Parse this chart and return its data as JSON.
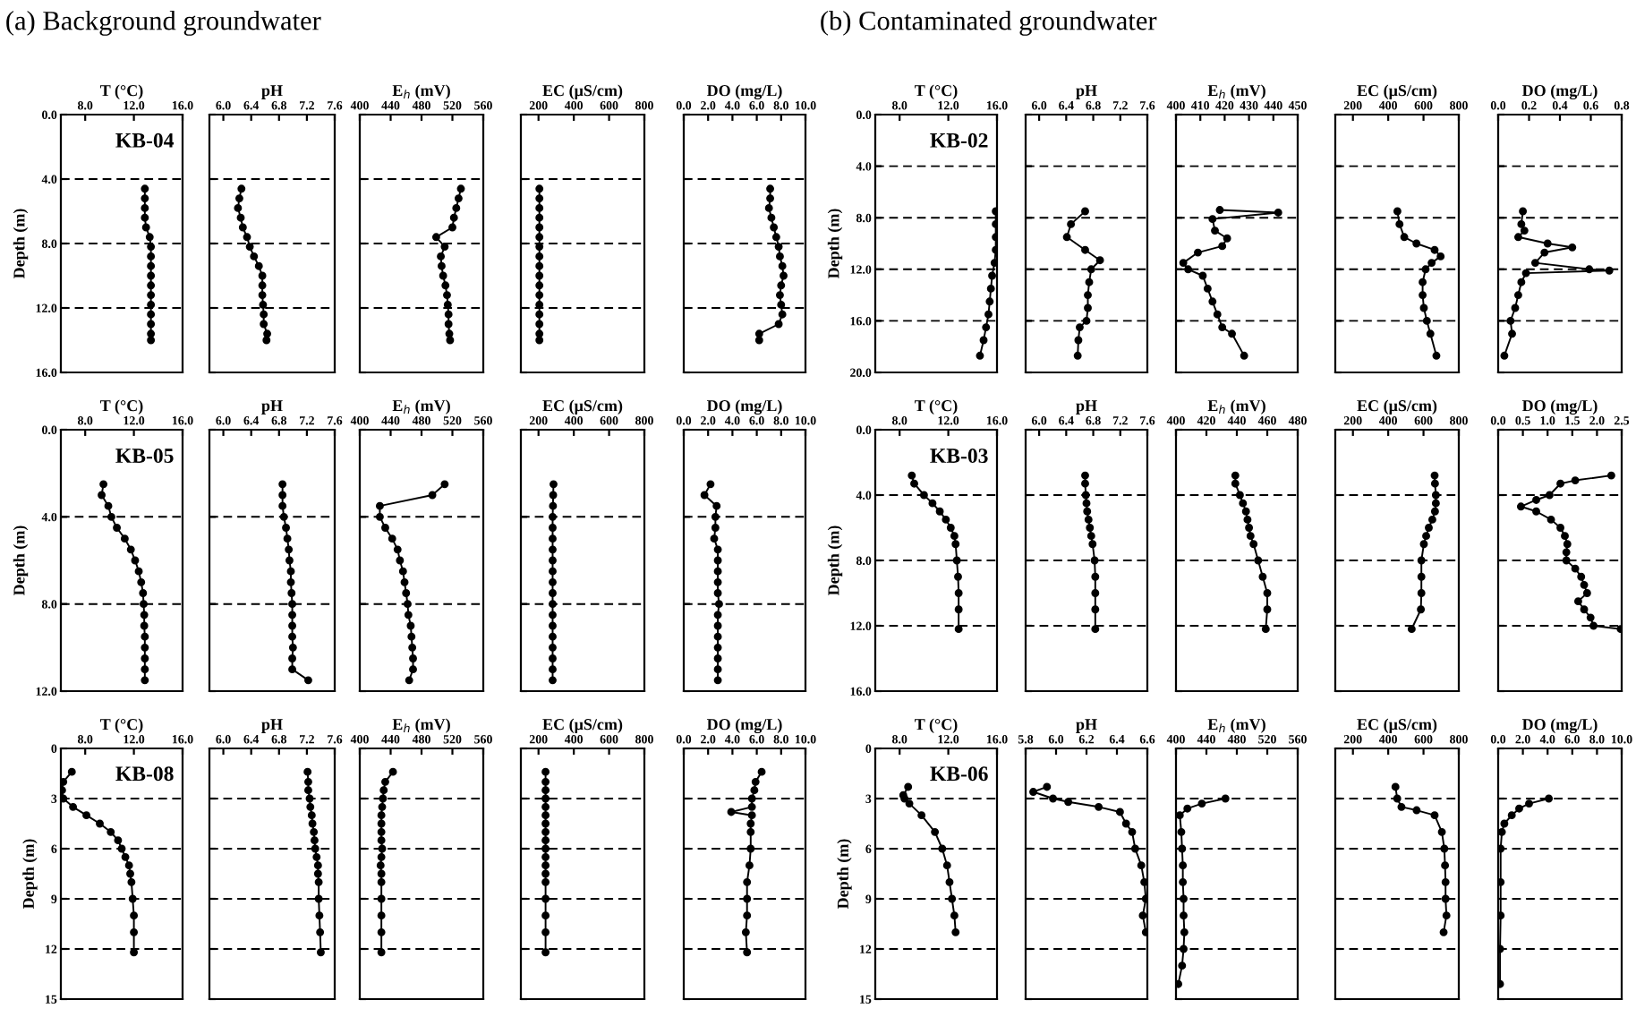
{
  "chart_data": [
    {
      "type": "line",
      "title": "(a) Background groundwater",
      "xlabel": "T (°C)",
      "ylabel": "Depth (m)",
      "annotations": [
        "KB-04"
      ],
      "xlim": [
        6,
        16
      ],
      "xticks": [
        {
          "value": 8,
          "label": "8.0"
        },
        {
          "value": 12,
          "label": "12.0"
        },
        {
          "value": 16,
          "label": "16.0"
        }
      ],
      "ylim": [
        16,
        0
      ],
      "yticks": [
        {
          "value": 0,
          "label": "0.0"
        },
        {
          "value": 4,
          "label": "4.0"
        },
        {
          "value": 8,
          "label": "8.0"
        },
        {
          "value": 12,
          "label": "12.0"
        },
        {
          "value": 16,
          "label": "16.0"
        }
      ],
      "grid": "y",
      "marker": "circle",
      "line_style": "solid",
      "series": [
        {
          "color": "#000000",
          "x": [
            12.9,
            12.9,
            12.9,
            12.9,
            13.0,
            13.3,
            13.4,
            13.4,
            13.4,
            13.4,
            13.4,
            13.4,
            13.4,
            13.4,
            13.4,
            13.4,
            13.4
          ],
          "values": [
            4.6,
            5.2,
            5.8,
            6.4,
            7.0,
            7.6,
            8.2,
            8.8,
            9.4,
            10.0,
            10.6,
            11.2,
            11.8,
            12.4,
            13.0,
            13.6,
            14.0
          ]
        }
      ]
    },
    {
      "type": "line",
      "xlabel": "pH",
      "xlim": [
        5.8,
        7.6
      ],
      "xticks": [
        {
          "value": 6,
          "label": "6.0"
        },
        6.4,
        6.8,
        7.2,
        7.6
      ],
      "ylim": [
        16,
        0
      ],
      "yticks": [
        0,
        4,
        8,
        12,
        16
      ],
      "tick_labels": "x",
      "grid": "y",
      "marker": "circle",
      "line_style": "solid",
      "series": [
        {
          "color": "#000000",
          "x": [
            6.26,
            6.23,
            6.21,
            6.25,
            6.28,
            6.34,
            6.38,
            6.44,
            6.51,
            6.56,
            6.56,
            6.56,
            6.57,
            6.58,
            6.58,
            6.63,
            6.62
          ],
          "values": [
            4.6,
            5.2,
            5.8,
            6.4,
            7.0,
            7.6,
            8.2,
            8.8,
            9.4,
            10.0,
            10.6,
            11.2,
            11.8,
            12.4,
            13.0,
            13.6,
            14.0
          ]
        }
      ]
    },
    {
      "type": "line",
      "xlabel": "E$_{h}$ (mV)",
      "xlim": [
        400,
        560
      ],
      "xticks": [
        400,
        440,
        480,
        520,
        560
      ],
      "ylim": [
        16,
        0
      ],
      "yticks": [
        0,
        4,
        8,
        12,
        16
      ],
      "tick_labels": "x",
      "grid": "y",
      "marker": "circle",
      "line_style": "solid",
      "series": [
        {
          "color": "#000000",
          "x": [
            531,
            528,
            525,
            522,
            520,
            499,
            510,
            505,
            506,
            508,
            511,
            513,
            514,
            515,
            515,
            516,
            517
          ],
          "values": [
            4.6,
            5.2,
            5.8,
            6.4,
            7.0,
            7.6,
            8.2,
            8.8,
            9.4,
            10.0,
            10.6,
            11.2,
            11.8,
            12.4,
            13.0,
            13.6,
            14.0
          ]
        }
      ]
    },
    {
      "type": "line",
      "xlabel": "EC (μS/cm)",
      "xlim": [
        100,
        800
      ],
      "xticks": [
        200,
        400,
        600,
        800
      ],
      "ylim": [
        16,
        0
      ],
      "yticks": [
        0,
        4,
        8,
        12,
        16
      ],
      "tick_labels": "x",
      "grid": "y",
      "marker": "circle",
      "line_style": "solid",
      "series": [
        {
          "color": "#000000",
          "x": [
            205,
            205,
            205,
            205,
            205,
            205,
            205,
            205,
            205,
            205,
            205,
            205,
            205,
            205,
            205,
            205,
            205
          ],
          "values": [
            4.6,
            5.2,
            5.8,
            6.4,
            7.0,
            7.6,
            8.2,
            8.8,
            9.4,
            10.0,
            10.6,
            11.2,
            11.8,
            12.4,
            13.0,
            13.6,
            14.0
          ]
        }
      ]
    },
    {
      "type": "line",
      "xlabel": "DO (mg/L)",
      "xlim": [
        0,
        10
      ],
      "xticks": [
        {
          "value": 0,
          "label": "0.0"
        },
        {
          "value": 2,
          "label": "2.0"
        },
        {
          "value": 4,
          "label": "4.0"
        },
        {
          "value": 6,
          "label": "6.0"
        },
        {
          "value": 8,
          "label": "8.0"
        },
        {
          "value": 10,
          "label": "10.0"
        }
      ],
      "ylim": [
        16,
        0
      ],
      "yticks": [
        0,
        4,
        8,
        12,
        16
      ],
      "tick_labels": "x",
      "grid": "y",
      "marker": "circle",
      "line_style": "solid",
      "series": [
        {
          "color": "#000000",
          "x": [
            7.1,
            7.1,
            7.0,
            7.2,
            7.4,
            7.6,
            7.8,
            7.9,
            8.1,
            8.2,
            8.0,
            7.9,
            8.0,
            8.1,
            7.8,
            6.2,
            6.2
          ],
          "values": [
            4.6,
            5.2,
            5.8,
            6.4,
            7.0,
            7.6,
            8.2,
            8.8,
            9.4,
            10.0,
            10.6,
            11.2,
            11.8,
            12.4,
            13.0,
            13.6,
            14.0
          ]
        }
      ]
    },
    {
      "type": "line",
      "xlabel": "T (°C)",
      "ylabel": "Depth (m)",
      "annotations": [
        "KB-05"
      ],
      "xlim": [
        6,
        16
      ],
      "xticks": [
        {
          "value": 8,
          "label": "8.0"
        },
        {
          "value": 12,
          "label": "12.0"
        },
        {
          "value": 16,
          "label": "16.0"
        }
      ],
      "ylim": [
        12,
        0
      ],
      "yticks": [
        {
          "value": 0,
          "label": "0.0"
        },
        {
          "value": 4,
          "label": "4.0"
        },
        {
          "value": 8,
          "label": "8.0"
        },
        {
          "value": 12,
          "label": "12.0"
        }
      ],
      "grid": "y",
      "marker": "circle",
      "line_style": "solid",
      "series": [
        {
          "color": "#000000",
          "x": [
            9.5,
            9.35,
            9.9,
            10.15,
            10.6,
            11.25,
            11.75,
            12.1,
            12.4,
            12.6,
            12.75,
            12.8,
            12.85,
            12.85,
            12.9,
            12.9,
            12.9,
            12.9,
            12.9
          ],
          "values": [
            2.5,
            3.0,
            3.5,
            4.0,
            4.5,
            5.0,
            5.5,
            6.0,
            6.5,
            7.0,
            7.5,
            8.0,
            8.5,
            9.0,
            9.5,
            10.0,
            10.5,
            11.0,
            11.5
          ]
        }
      ]
    },
    {
      "type": "line",
      "xlabel": "pH",
      "xlim": [
        5.8,
        7.6
      ],
      "xticks": [
        {
          "value": 6,
          "label": "6.0"
        },
        6.4,
        6.8,
        7.2,
        7.6
      ],
      "ylim": [
        12,
        0
      ],
      "yticks": [
        0,
        4,
        8,
        12
      ],
      "tick_labels": "x",
      "grid": "y",
      "marker": "circle",
      "line_style": "solid",
      "series": [
        {
          "color": "#000000",
          "x": [
            6.85,
            6.85,
            6.85,
            6.87,
            6.9,
            6.92,
            6.94,
            6.95,
            6.97,
            6.97,
            6.98,
            6.99,
            6.99,
            6.99,
            6.99,
            7.0,
            6.99,
            6.99,
            7.22
          ],
          "values": [
            2.5,
            3.0,
            3.5,
            4.0,
            4.5,
            5.0,
            5.5,
            6.0,
            6.5,
            7.0,
            7.5,
            8.0,
            8.5,
            9.0,
            9.5,
            10.0,
            10.5,
            11.0,
            11.5
          ]
        }
      ]
    },
    {
      "type": "line",
      "xlabel": "E$_{h}$ (mV)",
      "xlim": [
        400,
        560
      ],
      "xticks": [
        400,
        440,
        480,
        520,
        560
      ],
      "ylim": [
        12,
        0
      ],
      "yticks": [
        0,
        4,
        8,
        12
      ],
      "tick_labels": "x",
      "grid": "y",
      "marker": "circle",
      "line_style": "solid",
      "series": [
        {
          "color": "#000000",
          "x": [
            510,
            494,
            426,
            426,
            433,
            442,
            449,
            452,
            456,
            458,
            460,
            462,
            463,
            466,
            467,
            468,
            469,
            469,
            464
          ],
          "values": [
            2.5,
            3.0,
            3.5,
            4.0,
            4.5,
            5.0,
            5.5,
            6.0,
            6.5,
            7.0,
            7.5,
            8.0,
            8.5,
            9.0,
            9.5,
            10.0,
            10.5,
            11.0,
            11.5
          ]
        }
      ]
    },
    {
      "type": "line",
      "xlabel": "EC (μS/cm)",
      "xlim": [
        100,
        800
      ],
      "xticks": [
        200,
        400,
        600,
        800
      ],
      "ylim": [
        12,
        0
      ],
      "yticks": [
        0,
        4,
        8,
        12
      ],
      "tick_labels": "x",
      "grid": "y",
      "marker": "circle",
      "line_style": "solid",
      "series": [
        {
          "color": "#000000",
          "x": [
            285,
            283,
            282,
            280,
            280,
            280,
            280,
            280,
            280,
            280,
            280,
            280,
            280,
            280,
            280,
            280,
            280,
            280,
            280
          ],
          "values": [
            2.5,
            3.0,
            3.5,
            4.0,
            4.5,
            5.0,
            5.5,
            6.0,
            6.5,
            7.0,
            7.5,
            8.0,
            8.5,
            9.0,
            9.5,
            10.0,
            10.5,
            11.0,
            11.5
          ]
        }
      ]
    },
    {
      "type": "line",
      "xlabel": "DO (mg/L)",
      "xlim": [
        0,
        10
      ],
      "xticks": [
        {
          "value": 0,
          "label": "0.0"
        },
        {
          "value": 2,
          "label": "2.0"
        },
        {
          "value": 4,
          "label": "4.0"
        },
        {
          "value": 6,
          "label": "6.0"
        },
        {
          "value": 8,
          "label": "8.0"
        },
        {
          "value": 10,
          "label": "10.0"
        }
      ],
      "ylim": [
        12,
        0
      ],
      "yticks": [
        0,
        4,
        8,
        12
      ],
      "tick_labels": "x",
      "grid": "y",
      "marker": "circle",
      "line_style": "solid",
      "series": [
        {
          "color": "#000000",
          "x": [
            2.2,
            1.7,
            2.7,
            2.6,
            2.6,
            2.5,
            2.8,
            2.8,
            2.8,
            2.8,
            2.8,
            2.9,
            2.8,
            2.8,
            2.8,
            2.8,
            2.8,
            2.8,
            2.8
          ],
          "values": [
            2.5,
            3.0,
            3.5,
            4.0,
            4.5,
            5.0,
            5.5,
            6.0,
            6.5,
            7.0,
            7.5,
            8.0,
            8.5,
            9.0,
            9.5,
            10.0,
            10.5,
            11.0,
            11.5
          ]
        }
      ]
    },
    {
      "type": "line",
      "xlabel": "T (°C)",
      "ylabel": "Depth (m)",
      "annotations": [
        "KB-08"
      ],
      "xlim": [
        6,
        16
      ],
      "xticks": [
        {
          "value": 8,
          "label": "8.0"
        },
        {
          "value": 12,
          "label": "12.0"
        },
        {
          "value": 16,
          "label": "16.0"
        }
      ],
      "ylim": [
        15,
        0
      ],
      "yticks": [
        0,
        3,
        6,
        9,
        12,
        15
      ],
      "grid": "y",
      "marker": "circle",
      "line_style": "solid",
      "series": [
        {
          "color": "#000000",
          "x": [
            6.9,
            6.2,
            6.1,
            6.2,
            7.0,
            8.1,
            9.2,
            10.1,
            10.7,
            11.0,
            11.3,
            11.6,
            11.7,
            11.8,
            11.9,
            12.0,
            12.0,
            12.0
          ],
          "values": [
            1.4,
            2.0,
            2.5,
            3.0,
            3.5,
            4.0,
            4.5,
            5.0,
            5.5,
            6.0,
            6.5,
            7.0,
            7.5,
            8.0,
            9.0,
            10.0,
            11.0,
            12.2
          ]
        }
      ]
    },
    {
      "type": "line",
      "xlabel": "pH",
      "xlim": [
        5.8,
        7.6
      ],
      "xticks": [
        {
          "value": 6,
          "label": "6.0"
        },
        6.4,
        6.8,
        7.2,
        7.6
      ],
      "ylim": [
        15,
        0
      ],
      "yticks": [
        0,
        3,
        6,
        9,
        12,
        15
      ],
      "tick_labels": "x",
      "grid": "y",
      "marker": "circle",
      "line_style": "solid",
      "series": [
        {
          "color": "#000000",
          "x": [
            7.21,
            7.22,
            7.22,
            7.24,
            7.25,
            7.27,
            7.28,
            7.3,
            7.31,
            7.32,
            7.34,
            7.36,
            7.36,
            7.37,
            7.37,
            7.38,
            7.39,
            7.4
          ],
          "values": [
            1.4,
            2.0,
            2.5,
            3.0,
            3.5,
            4.0,
            4.5,
            5.0,
            5.5,
            6.0,
            6.5,
            7.0,
            7.5,
            8.0,
            9.0,
            10.0,
            11.0,
            12.2
          ]
        }
      ]
    },
    {
      "type": "line",
      "xlabel": "E$_{h}$ (mV)",
      "xlim": [
        400,
        560
      ],
      "xticks": [
        400,
        440,
        480,
        520,
        560
      ],
      "ylim": [
        15,
        0
      ],
      "yticks": [
        0,
        3,
        6,
        9,
        12,
        15
      ],
      "tick_labels": "x",
      "grid": "y",
      "marker": "circle",
      "line_style": "solid",
      "series": [
        {
          "color": "#000000",
          "x": [
            443,
            433,
            431,
            430,
            429,
            428,
            428,
            428,
            428,
            429,
            428,
            427,
            428,
            428,
            428,
            428,
            428,
            428
          ],
          "values": [
            1.4,
            2.0,
            2.5,
            3.0,
            3.5,
            4.0,
            4.5,
            5.0,
            5.5,
            6.0,
            6.5,
            7.0,
            7.5,
            8.0,
            9.0,
            10.0,
            11.0,
            12.2
          ]
        }
      ]
    },
    {
      "type": "line",
      "xlabel": "EC (μS/cm)",
      "xlim": [
        100,
        800
      ],
      "xticks": [
        200,
        400,
        600,
        800
      ],
      "ylim": [
        15,
        0
      ],
      "yticks": [
        0,
        3,
        6,
        9,
        12,
        15
      ],
      "tick_labels": "x",
      "grid": "y",
      "marker": "circle",
      "line_style": "solid",
      "series": [
        {
          "color": "#000000",
          "x": [
            240,
            240,
            240,
            240,
            240,
            240,
            240,
            240,
            240,
            240,
            240,
            240,
            240,
            240,
            240,
            240,
            240,
            240
          ],
          "values": [
            1.4,
            2.0,
            2.5,
            3.0,
            3.5,
            4.0,
            4.5,
            5.0,
            5.5,
            6.0,
            6.5,
            7.0,
            7.5,
            8.0,
            9.0,
            10.0,
            11.0,
            12.2
          ]
        }
      ]
    },
    {
      "type": "line",
      "xlabel": "DO (mg/L)",
      "xlim": [
        0,
        10
      ],
      "xticks": [
        {
          "value": 0,
          "label": "0.0"
        },
        {
          "value": 2,
          "label": "2.0"
        },
        {
          "value": 4,
          "label": "4.0"
        },
        {
          "value": 6,
          "label": "6.0"
        },
        {
          "value": 8,
          "label": "8.0"
        },
        {
          "value": 10,
          "label": "10.0"
        }
      ],
      "ylim": [
        15,
        0
      ],
      "yticks": [
        0,
        3,
        6,
        9,
        12,
        15
      ],
      "tick_labels": "x",
      "grid": "y",
      "marker": "circle",
      "line_style": "solid",
      "series": [
        {
          "color": "#000000",
          "x": [
            6.4,
            5.9,
            5.8,
            5.6,
            5.6,
            3.9,
            5.6,
            5.5,
            5.5,
            5.5,
            5.4,
            5.2,
            5.2,
            5.2,
            5.1,
            5.2
          ],
          "values": [
            1.4,
            2.0,
            2.5,
            3.0,
            3.5,
            3.8,
            4.0,
            4.5,
            5.0,
            6.0,
            7.0,
            8.0,
            9.0,
            10.0,
            11.0,
            12.2
          ]
        }
      ]
    },
    {
      "type": "line",
      "title": "(b) Contaminated groundwater",
      "xlabel": "T (°C)",
      "ylabel": "Depth (m)",
      "annotations": [
        "KB-02"
      ],
      "xlim": [
        6,
        16
      ],
      "xticks": [
        {
          "value": 8,
          "label": "8.0"
        },
        {
          "value": 12,
          "label": "12.0"
        },
        {
          "value": 16,
          "label": "16.0"
        }
      ],
      "ylim": [
        20,
        0
      ],
      "yticks": [
        {
          "value": 0,
          "label": "0.0"
        },
        {
          "value": 4,
          "label": "4.0"
        },
        {
          "value": 8,
          "label": "8.0"
        },
        {
          "value": 12,
          "label": "12.0"
        },
        {
          "value": 16,
          "label": "16.0"
        },
        {
          "value": 20,
          "label": "20.0"
        }
      ],
      "grid": "y",
      "marker": "circle",
      "line_style": "solid",
      "series": [
        {
          "color": "#000000",
          "x": [
            15.9,
            15.9,
            15.9,
            15.9,
            15.8,
            15.6,
            15.5,
            15.4,
            15.3,
            15.1,
            14.9,
            14.6
          ],
          "values": [
            7.5,
            8.5,
            9.5,
            10.5,
            11.5,
            12.5,
            13.5,
            14.5,
            15.5,
            16.5,
            17.5,
            18.7
          ]
        }
      ]
    },
    {
      "type": "line",
      "xlabel": "pH",
      "xlim": [
        5.8,
        7.6
      ],
      "xticks": [
        {
          "value": 6,
          "label": "6.0"
        },
        6.4,
        6.8,
        7.2,
        7.6
      ],
      "ylim": [
        20,
        0
      ],
      "yticks": [
        0,
        4,
        8,
        12,
        16,
        20
      ],
      "tick_labels": "x",
      "grid": "y",
      "marker": "circle",
      "line_style": "solid",
      "series": [
        {
          "color": "#000000",
          "x": [
            6.68,
            6.47,
            6.41,
            6.68,
            6.9,
            6.77,
            6.74,
            6.72,
            6.72,
            6.7,
            6.6,
            6.58,
            6.57
          ],
          "values": [
            7.5,
            8.5,
            9.5,
            10.5,
            11.3,
            12.0,
            13.0,
            14.0,
            15.0,
            16.0,
            16.5,
            17.5,
            18.7
          ]
        }
      ]
    },
    {
      "type": "line",
      "xlabel": "E$_{h}$ (mV)",
      "xlim": [
        400,
        450
      ],
      "xticks": [
        400,
        410,
        420,
        430,
        440,
        450
      ],
      "ylim": [
        20,
        0
      ],
      "yticks": [
        0,
        4,
        8,
        12,
        16,
        20
      ],
      "tick_labels": "x",
      "grid": "y",
      "marker": "circle",
      "line_style": "solid",
      "series": [
        {
          "color": "#000000",
          "x": [
            418,
            442,
            415,
            416,
            421,
            419,
            409,
            403,
            405,
            411,
            413,
            415,
            417,
            419,
            423,
            428
          ],
          "values": [
            7.4,
            7.6,
            8.1,
            9.0,
            9.6,
            10.2,
            10.7,
            11.5,
            12.0,
            12.5,
            13.5,
            14.5,
            15.5,
            16.5,
            17.0,
            18.7
          ]
        }
      ]
    },
    {
      "type": "line",
      "xlabel": "EC (μS/cm)",
      "xlim": [
        100,
        800
      ],
      "xticks": [
        200,
        400,
        600,
        800
      ],
      "ylim": [
        20,
        0
      ],
      "yticks": [
        0,
        4,
        8,
        12,
        16,
        20
      ],
      "tick_labels": "x",
      "grid": "y",
      "marker": "circle",
      "line_style": "solid",
      "series": [
        {
          "color": "#000000",
          "x": [
            452,
            464,
            491,
            560,
            663,
            697,
            646,
            612,
            595,
            595,
            602,
            619,
            639,
            673
          ],
          "values": [
            7.5,
            8.5,
            9.5,
            10.0,
            10.5,
            11.0,
            11.5,
            12.0,
            13.0,
            14.0,
            15.0,
            16.0,
            17.0,
            18.7
          ]
        }
      ]
    },
    {
      "type": "line",
      "xlabel": "DO (mg/L)",
      "xlim": [
        0,
        0.8
      ],
      "xticks": [
        {
          "value": 0,
          "label": "0.0"
        },
        0.2,
        0.4,
        0.6,
        0.8
      ],
      "ylim": [
        20,
        0
      ],
      "yticks": [
        0,
        4,
        8,
        12,
        16,
        20
      ],
      "tick_labels": "x",
      "grid": "y",
      "marker": "circle",
      "line_style": "solid",
      "series": [
        {
          "color": "#000000",
          "x": [
            0.16,
            0.15,
            0.17,
            0.13,
            0.32,
            0.48,
            0.3,
            0.24,
            0.59,
            0.72,
            0.18,
            0.15,
            0.13,
            0.11,
            0.08,
            0.09,
            0.04
          ],
          "values": [
            7.5,
            8.5,
            9.0,
            9.5,
            10.0,
            10.3,
            10.7,
            11.5,
            12.0,
            12.1,
            12.3,
            13.0,
            14.0,
            15.0,
            16.0,
            17.0,
            18.7
          ]
        }
      ]
    },
    {
      "type": "line",
      "xlabel": "T (°C)",
      "ylabel": "Depth (m)",
      "annotations": [
        "KB-03"
      ],
      "xlim": [
        6,
        16
      ],
      "xticks": [
        {
          "value": 8,
          "label": "8.0"
        },
        {
          "value": 12,
          "label": "12.0"
        },
        {
          "value": 16,
          "label": "16.0"
        }
      ],
      "ylim": [
        16,
        0
      ],
      "yticks": [
        {
          "value": 0,
          "label": "0.0"
        },
        {
          "value": 4,
          "label": "4.0"
        },
        {
          "value": 8,
          "label": "8.0"
        },
        {
          "value": 12,
          "label": "12.0"
        },
        {
          "value": 16,
          "label": "16.0"
        }
      ],
      "grid": "y",
      "marker": "circle",
      "line_style": "solid",
      "series": [
        {
          "color": "#000000",
          "x": [
            9.0,
            9.2,
            10.0,
            10.7,
            11.3,
            11.8,
            12.2,
            12.5,
            12.6,
            12.7,
            12.8,
            12.85,
            12.85,
            12.85
          ],
          "values": [
            2.8,
            3.3,
            4.0,
            4.5,
            5.0,
            5.5,
            6.0,
            6.5,
            7.0,
            8.0,
            9.0,
            10.0,
            11.0,
            12.2
          ]
        }
      ]
    },
    {
      "type": "line",
      "xlabel": "pH",
      "xlim": [
        5.8,
        7.6
      ],
      "xticks": [
        {
          "value": 6,
          "label": "6.0"
        },
        6.4,
        6.8,
        7.2,
        7.6
      ],
      "ylim": [
        16,
        0
      ],
      "yticks": [
        0,
        4,
        8,
        12,
        16
      ],
      "tick_labels": "x",
      "grid": "y",
      "marker": "circle",
      "line_style": "solid",
      "series": [
        {
          "color": "#000000",
          "x": [
            6.68,
            6.68,
            6.69,
            6.7,
            6.71,
            6.73,
            6.75,
            6.77,
            6.79,
            6.82,
            6.83,
            6.83,
            6.83,
            6.83
          ],
          "values": [
            2.8,
            3.3,
            4.0,
            4.5,
            5.0,
            5.5,
            6.0,
            6.5,
            7.0,
            8.0,
            9.0,
            10.0,
            11.0,
            12.2
          ]
        }
      ]
    },
    {
      "type": "line",
      "xlabel": "E$_{h}$ (mV)",
      "xlim": [
        400,
        480
      ],
      "xticks": [
        400,
        420,
        440,
        460,
        480
      ],
      "ylim": [
        16,
        0
      ],
      "yticks": [
        0,
        4,
        8,
        12,
        16
      ],
      "tick_labels": "x",
      "grid": "y",
      "marker": "circle",
      "line_style": "solid",
      "series": [
        {
          "color": "#000000",
          "x": [
            439,
            439,
            442,
            444,
            446,
            447,
            448,
            449,
            451,
            454,
            457,
            460,
            460,
            459
          ],
          "values": [
            2.8,
            3.3,
            4.0,
            4.5,
            5.0,
            5.5,
            6.0,
            6.5,
            7.0,
            8.0,
            9.0,
            10.0,
            11.0,
            12.2
          ]
        }
      ]
    },
    {
      "type": "line",
      "xlabel": "EC (μS/cm)",
      "xlim": [
        100,
        800
      ],
      "xticks": [
        200,
        400,
        600,
        800
      ],
      "ylim": [
        16,
        0
      ],
      "yticks": [
        0,
        4,
        8,
        12,
        16
      ],
      "tick_labels": "x",
      "grid": "y",
      "marker": "circle",
      "line_style": "solid",
      "series": [
        {
          "color": "#000000",
          "x": [
            663,
            665,
            670,
            670,
            665,
            650,
            630,
            615,
            602,
            588,
            588,
            588,
            585,
            533
          ],
          "values": [
            2.8,
            3.3,
            4.0,
            4.5,
            5.0,
            5.5,
            6.0,
            6.5,
            7.0,
            8.0,
            9.0,
            10.0,
            11.0,
            12.2
          ]
        }
      ]
    },
    {
      "type": "line",
      "xlabel": "DO (mg/L)",
      "xlim": [
        0,
        2.5
      ],
      "xticks": [
        {
          "value": 0,
          "label": "0.0"
        },
        0.5,
        {
          "value": 1,
          "label": "1.0"
        },
        1.5,
        {
          "value": 2,
          "label": "2.0"
        },
        2.5
      ],
      "ylim": [
        16,
        0
      ],
      "yticks": [
        0,
        4,
        8,
        12,
        16
      ],
      "tick_labels": "x",
      "grid": "y",
      "marker": "circle",
      "line_style": "solid",
      "series": [
        {
          "color": "#000000",
          "x": [
            2.29,
            1.56,
            1.26,
            1.04,
            0.77,
            0.46,
            0.77,
            1.07,
            1.26,
            1.35,
            1.4,
            1.38,
            1.38,
            1.56,
            1.68,
            1.74,
            1.8,
            1.62,
            1.74,
            1.87,
            1.93,
            2.48
          ],
          "values": [
            2.8,
            3.1,
            3.3,
            4.0,
            4.3,
            4.7,
            5.0,
            5.5,
            6.0,
            6.5,
            7.0,
            7.5,
            8.0,
            8.5,
            9.0,
            9.5,
            10.0,
            10.5,
            11.0,
            11.5,
            12.0,
            12.2
          ]
        }
      ]
    },
    {
      "type": "line",
      "xlabel": "T (°C)",
      "ylabel": "Depth (m)",
      "annotations": [
        "KB-06"
      ],
      "xlim": [
        6,
        16
      ],
      "xticks": [
        {
          "value": 8,
          "label": "8.0"
        },
        {
          "value": 12,
          "label": "12.0"
        },
        {
          "value": 16,
          "label": "16.0"
        }
      ],
      "ylim": [
        15,
        0
      ],
      "yticks": [
        0,
        3,
        6,
        9,
        12,
        15
      ],
      "grid": "y",
      "marker": "circle",
      "line_style": "solid",
      "series": [
        {
          "color": "#000000",
          "x": [
            8.7,
            8.3,
            8.4,
            8.8,
            9.8,
            10.9,
            11.5,
            11.9,
            12.1,
            12.3,
            12.5,
            12.6
          ],
          "values": [
            2.3,
            2.8,
            3.0,
            3.3,
            4.0,
            5.0,
            6.0,
            7.0,
            8.0,
            9.0,
            10.0,
            11.0
          ]
        }
      ]
    },
    {
      "type": "line",
      "xlabel": "pH",
      "xlim": [
        5.8,
        6.6
      ],
      "xticks": [
        5.8,
        {
          "value": 6,
          "label": "6.0"
        },
        6.2,
        6.4,
        6.6
      ],
      "ylim": [
        15,
        0
      ],
      "yticks": [
        0,
        3,
        6,
        9,
        12,
        15
      ],
      "tick_labels": "x",
      "grid": "y",
      "marker": "circle",
      "line_style": "solid",
      "series": [
        {
          "color": "#000000",
          "x": [
            5.94,
            5.85,
            5.98,
            6.08,
            6.28,
            6.42,
            6.46,
            6.5,
            6.52,
            6.56,
            6.58,
            6.59,
            6.57,
            6.59
          ],
          "values": [
            2.3,
            2.6,
            3.0,
            3.2,
            3.5,
            3.8,
            4.5,
            5.0,
            6.0,
            7.0,
            8.0,
            9.0,
            10.0,
            11.0
          ]
        }
      ]
    },
    {
      "type": "line",
      "xlabel": "E$_{h}$ (mV)",
      "xlim": [
        400,
        560
      ],
      "xticks": [
        400,
        440,
        480,
        520,
        560
      ],
      "ylim": [
        15,
        0
      ],
      "yticks": [
        0,
        3,
        6,
        9,
        12,
        15
      ],
      "tick_labels": "x",
      "grid": "y",
      "marker": "circle",
      "line_style": "solid",
      "series": [
        {
          "color": "#000000",
          "x": [
            465,
            434,
            415,
            405,
            407,
            408,
            409,
            409,
            410,
            410,
            411,
            410,
            408,
            403
          ],
          "values": [
            3.0,
            3.3,
            3.6,
            4.0,
            5.0,
            6.0,
            7.0,
            8.0,
            9.0,
            10.0,
            11.0,
            12.0,
            13.0,
            14.1
          ]
        }
      ]
    },
    {
      "type": "line",
      "xlabel": "EC (μS/cm)",
      "xlim": [
        100,
        800
      ],
      "xticks": [
        200,
        400,
        600,
        800
      ],
      "ylim": [
        15,
        0
      ],
      "yticks": [
        0,
        3,
        6,
        9,
        12,
        15
      ],
      "tick_labels": "x",
      "grid": "y",
      "marker": "circle",
      "line_style": "solid",
      "series": [
        {
          "color": "#000000",
          "x": [
            441,
            451,
            475,
            561,
            663,
            704,
            718,
            722,
            725,
            725,
            730,
            714
          ],
          "values": [
            2.3,
            3.0,
            3.5,
            3.7,
            4.0,
            5.0,
            6.0,
            7.0,
            8.0,
            9.0,
            10.0,
            11.0
          ]
        }
      ]
    },
    {
      "type": "line",
      "xlabel": "DO (mg/L)",
      "xlim": [
        0,
        10
      ],
      "xticks": [
        {
          "value": 0,
          "label": "0.0"
        },
        {
          "value": 2,
          "label": "2.0"
        },
        {
          "value": 4,
          "label": "4.0"
        },
        {
          "value": 6,
          "label": "6.0"
        },
        {
          "value": 8,
          "label": "8.0"
        },
        {
          "value": 10,
          "label": "10.0"
        }
      ],
      "ylim": [
        15,
        0
      ],
      "yticks": [
        0,
        3,
        6,
        9,
        12,
        15
      ],
      "tick_labels": "x",
      "grid": "y",
      "marker": "circle",
      "line_style": "solid",
      "series": [
        {
          "color": "#000000",
          "x": [
            4.1,
            2.5,
            1.7,
            1.1,
            0.5,
            0.3,
            0.2,
            0.2,
            0.2,
            0.15,
            0.15
          ],
          "values": [
            3.0,
            3.3,
            3.6,
            4.0,
            4.5,
            5.0,
            6.0,
            8.0,
            10.0,
            12.0,
            14.1
          ]
        }
      ]
    }
  ]
}
